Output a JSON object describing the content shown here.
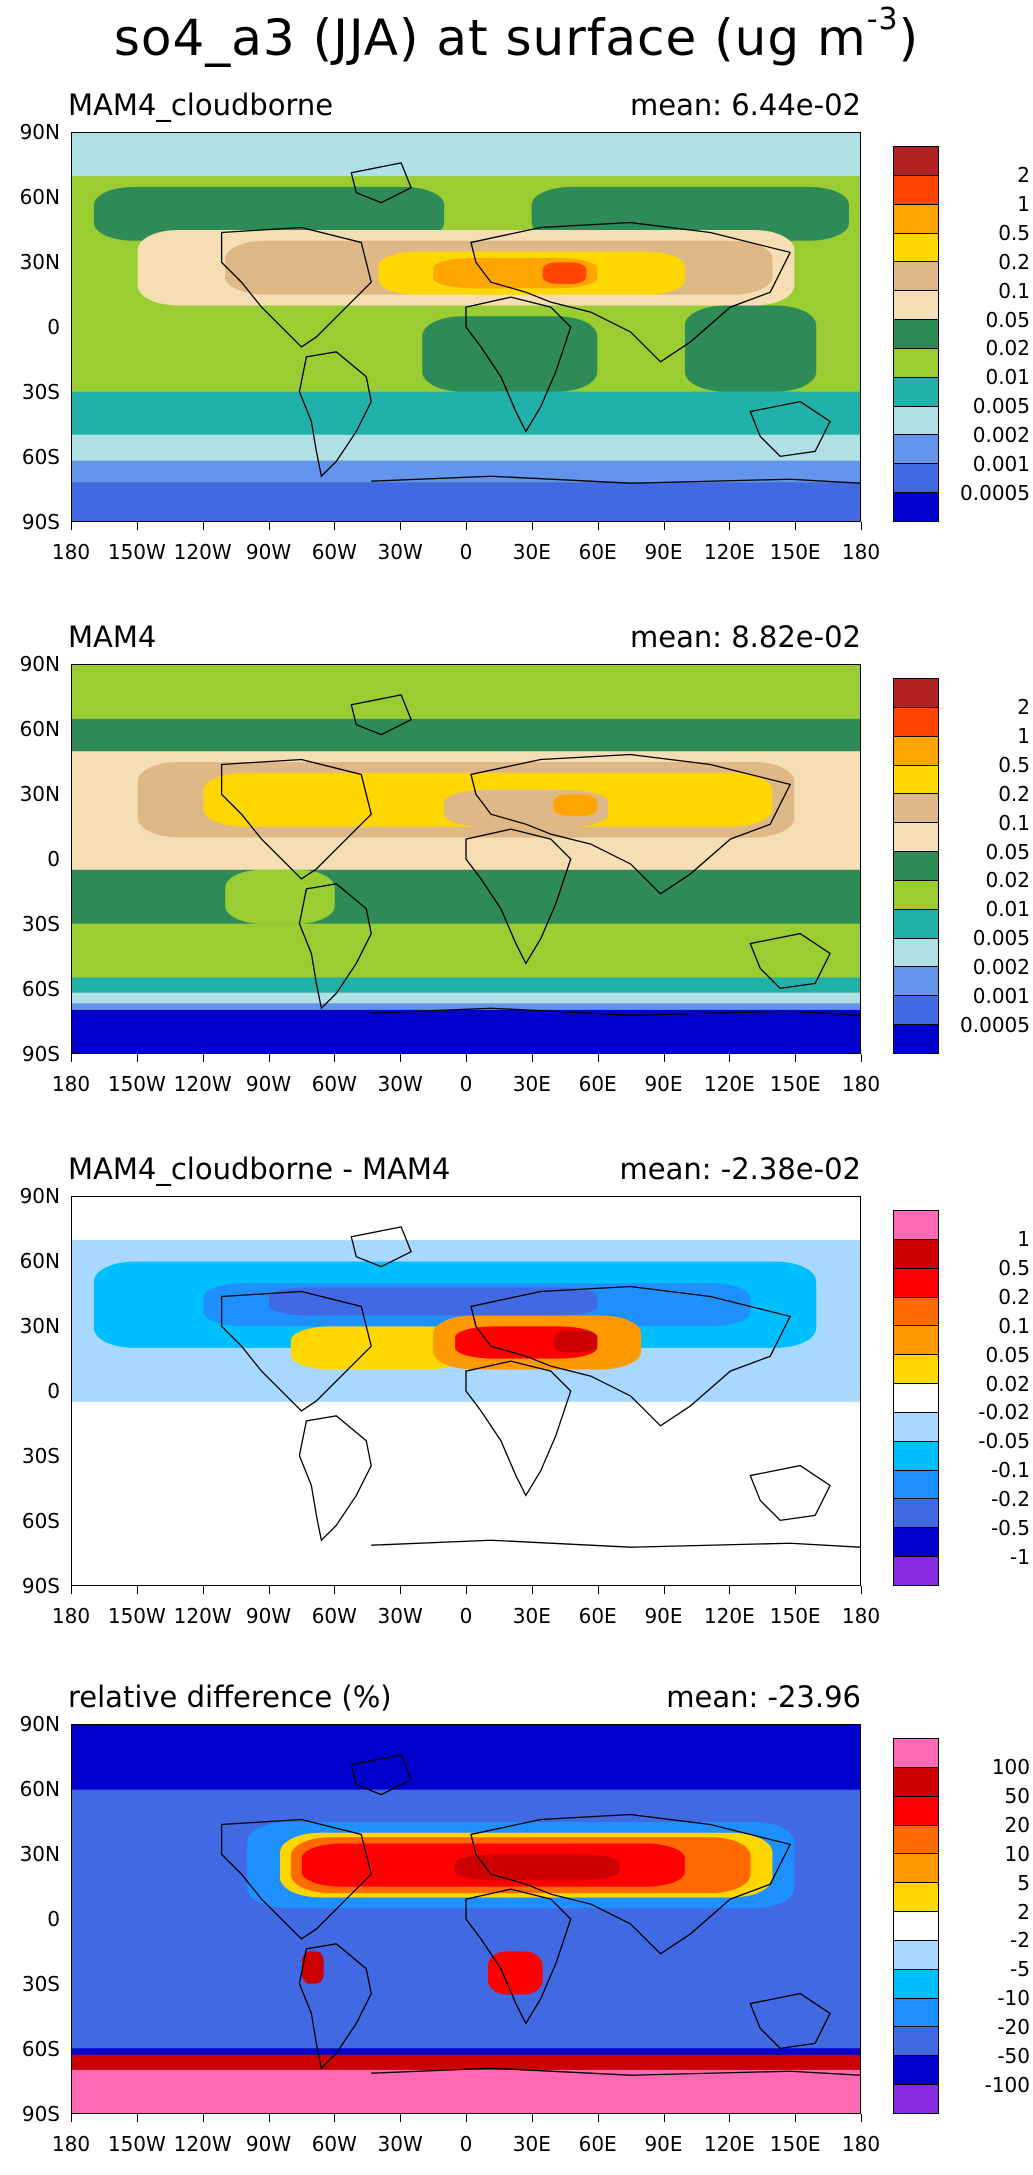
{
  "title": "so4_a3 (JJA) at surface (ug m",
  "title_exponent": "-3",
  "title_close": ")",
  "lat_ticks": [
    "90N",
    "60N",
    "30N",
    "0",
    "30S",
    "60S",
    "90S"
  ],
  "lon_ticks": [
    "180",
    "150W",
    "120W",
    "90W",
    "60W",
    "30W",
    "0",
    "30E",
    "60E",
    "90E",
    "120E",
    "150E",
    "180"
  ],
  "chart_data": [
    {
      "type": "heatmap",
      "name": "MAM4_cloudborne",
      "mean_text": "mean: 6.44e-02",
      "mean": 0.0644,
      "levels": [
        "2",
        "1",
        "0.5",
        "0.2",
        "0.1",
        "0.05",
        "0.02",
        "0.01",
        "0.005",
        "0.002",
        "0.001",
        "0.0005"
      ],
      "colors": [
        "#b22222",
        "#ff4500",
        "#ffa500",
        "#ffd700",
        "#deb887",
        "#f5deb3",
        "#2e8b57",
        "#9acd32",
        "#20b2aa",
        "#b0e0e6",
        "#6495ed",
        "#4169e1",
        "#0000cd"
      ],
      "background": "#9acd32",
      "regions": [
        {
          "lon": [
            -180,
            180
          ],
          "lat": [
            70,
            90
          ],
          "color": "#b0e0e6"
        },
        {
          "lon": [
            -180,
            180
          ],
          "lat": [
            -50,
            -30
          ],
          "color": "#20b2aa"
        },
        {
          "lon": [
            -180,
            180
          ],
          "lat": [
            -62,
            -50
          ],
          "color": "#b0e0e6"
        },
        {
          "lon": [
            -180,
            180
          ],
          "lat": [
            -72,
            -62
          ],
          "color": "#6495ed"
        },
        {
          "lon": [
            -180,
            180
          ],
          "lat": [
            -90,
            -72
          ],
          "color": "#4169e1"
        },
        {
          "lon": [
            -170,
            -10
          ],
          "lat": [
            40,
            65
          ],
          "color": "#2e8b57"
        },
        {
          "lon": [
            30,
            175
          ],
          "lat": [
            40,
            65
          ],
          "color": "#2e8b57"
        },
        {
          "lon": [
            -150,
            150
          ],
          "lat": [
            10,
            45
          ],
          "color": "#f5deb3"
        },
        {
          "lon": [
            -110,
            140
          ],
          "lat": [
            15,
            40
          ],
          "color": "#deb887"
        },
        {
          "lon": [
            -40,
            100
          ],
          "lat": [
            15,
            35
          ],
          "color": "#ffd700"
        },
        {
          "lon": [
            -15,
            60
          ],
          "lat": [
            18,
            32
          ],
          "color": "#ffa500"
        },
        {
          "lon": [
            35,
            55
          ],
          "lat": [
            20,
            30
          ],
          "color": "#ff4500"
        },
        {
          "lon": [
            -20,
            60
          ],
          "lat": [
            -30,
            5
          ],
          "color": "#2e8b57"
        },
        {
          "lon": [
            100,
            160
          ],
          "lat": [
            -30,
            10
          ],
          "color": "#2e8b57"
        }
      ]
    },
    {
      "type": "heatmap",
      "name": "MAM4",
      "mean_text": "mean: 8.82e-02",
      "mean": 0.0882,
      "levels": [
        "2",
        "1",
        "0.5",
        "0.2",
        "0.1",
        "0.05",
        "0.02",
        "0.01",
        "0.005",
        "0.002",
        "0.001",
        "0.0005"
      ],
      "colors": [
        "#b22222",
        "#ff4500",
        "#ffa500",
        "#ffd700",
        "#deb887",
        "#f5deb3",
        "#2e8b57",
        "#9acd32",
        "#20b2aa",
        "#b0e0e6",
        "#6495ed",
        "#4169e1",
        "#0000cd"
      ],
      "background": "#2e8b57",
      "regions": [
        {
          "lon": [
            -180,
            180
          ],
          "lat": [
            65,
            90
          ],
          "color": "#9acd32"
        },
        {
          "lon": [
            -180,
            180
          ],
          "lat": [
            -55,
            -30
          ],
          "color": "#9acd32"
        },
        {
          "lon": [
            -180,
            180
          ],
          "lat": [
            -62,
            -55
          ],
          "color": "#20b2aa"
        },
        {
          "lon": [
            -180,
            180
          ],
          "lat": [
            -67,
            -62
          ],
          "color": "#b0e0e6"
        },
        {
          "lon": [
            -180,
            180
          ],
          "lat": [
            -70,
            -67
          ],
          "color": "#6495ed"
        },
        {
          "lon": [
            -180,
            180
          ],
          "lat": [
            -90,
            -70
          ],
          "color": "#0000cd"
        },
        {
          "lon": [
            -180,
            180
          ],
          "lat": [
            -5,
            50
          ],
          "color": "#f5deb3"
        },
        {
          "lon": [
            -150,
            150
          ],
          "lat": [
            10,
            45
          ],
          "color": "#deb887"
        },
        {
          "lon": [
            -120,
            140
          ],
          "lat": [
            15,
            40
          ],
          "color": "#ffd700"
        },
        {
          "lon": [
            -10,
            65
          ],
          "lat": [
            15,
            32
          ],
          "color": "#deb887"
        },
        {
          "lon": [
            40,
            60
          ],
          "lat": [
            20,
            30
          ],
          "color": "#ffa500"
        },
        {
          "lon": [
            -110,
            -60
          ],
          "lat": [
            -30,
            -5
          ],
          "color": "#9acd32"
        }
      ]
    },
    {
      "type": "heatmap",
      "name": "MAM4_cloudborne - MAM4",
      "mean_text": "mean: -2.38e-02",
      "mean": -0.0238,
      "levels": [
        "1",
        "0.5",
        "0.2",
        "0.1",
        "0.05",
        "0.02",
        "-0.02",
        "-0.05",
        "-0.1",
        "-0.2",
        "-0.5",
        "-1"
      ],
      "colors": [
        "#ff69b4",
        "#cc0000",
        "#ff0000",
        "#ff6a00",
        "#ff9900",
        "#ffd700",
        "#ffffff",
        "#a8d8ff",
        "#00bfff",
        "#1e90ff",
        "#4169e1",
        "#0000cd",
        "#8a2be2"
      ],
      "background": "#ffffff",
      "regions": [
        {
          "lon": [
            -180,
            180
          ],
          "lat": [
            -5,
            70
          ],
          "color": "#a8d8ff"
        },
        {
          "lon": [
            -170,
            160
          ],
          "lat": [
            20,
            60
          ],
          "color": "#00bfff"
        },
        {
          "lon": [
            -120,
            130
          ],
          "lat": [
            30,
            50
          ],
          "color": "#1e90ff"
        },
        {
          "lon": [
            -90,
            60
          ],
          "lat": [
            35,
            48
          ],
          "color": "#4169e1"
        },
        {
          "lon": [
            -80,
            0
          ],
          "lat": [
            10,
            30
          ],
          "color": "#ffd700"
        },
        {
          "lon": [
            -15,
            80
          ],
          "lat": [
            10,
            35
          ],
          "color": "#ff9900"
        },
        {
          "lon": [
            -5,
            60
          ],
          "lat": [
            15,
            30
          ],
          "color": "#ff0000"
        },
        {
          "lon": [
            40,
            60
          ],
          "lat": [
            18,
            28
          ],
          "color": "#cc0000"
        },
        {
          "lon": [
            -180,
            180
          ],
          "lat": [
            -90,
            -40
          ],
          "color": "#ffffff"
        }
      ]
    },
    {
      "type": "heatmap",
      "name": "relative difference (%)",
      "mean_text": "mean: -23.96",
      "mean": -23.96,
      "levels": [
        "100",
        "50",
        "20",
        "10",
        "5",
        "2",
        "-2",
        "-5",
        "-10",
        "-20",
        "-50",
        "-100"
      ],
      "colors": [
        "#ff69b4",
        "#cc0000",
        "#ff0000",
        "#ff6a00",
        "#ff9900",
        "#ffd700",
        "#ffffff",
        "#a8d8ff",
        "#00bfff",
        "#1e90ff",
        "#4169e1",
        "#0000cd",
        "#8a2be2"
      ],
      "background": "#0000cd",
      "regions": [
        {
          "lon": [
            -180,
            180
          ],
          "lat": [
            -60,
            60
          ],
          "color": "#4169e1"
        },
        {
          "lon": [
            -100,
            150
          ],
          "lat": [
            5,
            45
          ],
          "color": "#1e90ff"
        },
        {
          "lon": [
            -85,
            140
          ],
          "lat": [
            10,
            40
          ],
          "color": "#ffd700"
        },
        {
          "lon": [
            -80,
            130
          ],
          "lat": [
            12,
            38
          ],
          "color": "#ff6a00"
        },
        {
          "lon": [
            -75,
            100
          ],
          "lat": [
            15,
            35
          ],
          "color": "#ff0000"
        },
        {
          "lon": [
            -5,
            70
          ],
          "lat": [
            18,
            30
          ],
          "color": "#cc0000"
        },
        {
          "lon": [
            10,
            35
          ],
          "lat": [
            -35,
            -15
          ],
          "color": "#ff0000"
        },
        {
          "lon": [
            -75,
            -65
          ],
          "lat": [
            -30,
            -15
          ],
          "color": "#cc0000"
        },
        {
          "lon": [
            -180,
            180
          ],
          "lat": [
            -70,
            -63
          ],
          "color": "#cc0000"
        },
        {
          "lon": [
            -180,
            180
          ],
          "lat": [
            -90,
            -70
          ],
          "color": "#ff69b4"
        }
      ]
    }
  ]
}
